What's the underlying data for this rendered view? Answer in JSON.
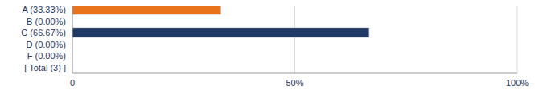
{
  "chart_data": {
    "type": "bar",
    "orientation": "horizontal",
    "categories": [
      "A (33.33%)",
      "B (0.00%)",
      "C (66.67%)",
      "D (0.00%)",
      "F (0.00%)",
      "[ Total (3) ]"
    ],
    "values": [
      33.33,
      0,
      66.67,
      0,
      0,
      null
    ],
    "colors": [
      "#e8731c",
      "#1f3864",
      "#1f3864",
      "#1f3864",
      "#1f3864",
      "#1f3864"
    ],
    "xlim": [
      0,
      100
    ],
    "xticks": [
      0,
      {
        "value": 50,
        "label": "50%"
      },
      {
        "value": 100,
        "label": "100%"
      }
    ],
    "grid": true
  }
}
